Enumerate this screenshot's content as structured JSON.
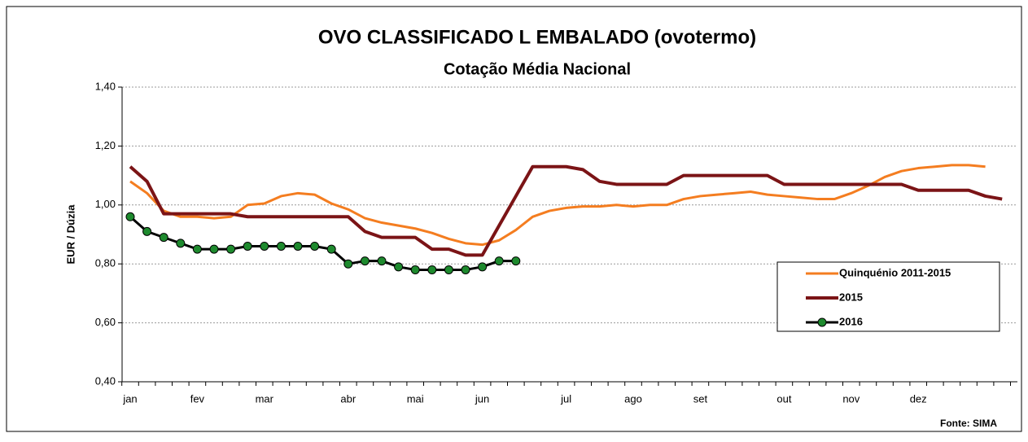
{
  "chart_data": {
    "type": "line",
    "title": "OVO CLASSIFICADO L EMBALADO (ovotermo)",
    "subtitle": "Cotação Média Nacional",
    "y_label": "EUR / Dúzia",
    "source": "Fonte: SIMA",
    "categories": [
      "jan",
      null,
      null,
      null,
      "fev",
      null,
      null,
      null,
      "mar",
      null,
      null,
      null,
      null,
      "abr",
      null,
      null,
      null,
      "mai",
      null,
      null,
      null,
      "jun",
      null,
      null,
      null,
      null,
      "jul",
      null,
      null,
      null,
      "ago",
      null,
      null,
      null,
      "set",
      null,
      null,
      null,
      null,
      "out",
      null,
      null,
      null,
      "nov",
      null,
      null,
      null,
      "dez",
      null,
      null,
      null,
      null,
      null
    ],
    "ylim": [
      0.4,
      1.4
    ],
    "yticks": [
      {
        "value": 0.4,
        "label": "0,40"
      },
      {
        "value": 0.6,
        "label": "0,60"
      },
      {
        "value": 0.8,
        "label": "0,80"
      },
      {
        "value": 1.0,
        "label": "1,00"
      },
      {
        "value": 1.2,
        "label": "1,20"
      },
      {
        "value": 1.4,
        "label": "1,40"
      }
    ],
    "grid": true,
    "legend": "right",
    "series": [
      {
        "name": "Quinquénio 2011-2015",
        "color": "#f47d20",
        "width": 3,
        "markers": false,
        "values": [
          1.08,
          1.04,
          0.98,
          0.96,
          0.96,
          0.955,
          0.96,
          1.0,
          1.005,
          1.03,
          1.04,
          1.035,
          1.005,
          0.985,
          0.955,
          0.94,
          0.93,
          0.92,
          0.905,
          0.885,
          0.87,
          0.865,
          0.88,
          0.915,
          0.96,
          0.98,
          0.99,
          0.995,
          0.995,
          1.0,
          0.995,
          1.0,
          1.0,
          1.02,
          1.03,
          1.035,
          1.04,
          1.045,
          1.035,
          1.03,
          1.025,
          1.02,
          1.02,
          1.04,
          1.065,
          1.095,
          1.115,
          1.125,
          1.13,
          1.135,
          1.135,
          1.13,
          null
        ]
      },
      {
        "name": "2015",
        "color": "#7b1416",
        "width": 4,
        "markers": false,
        "values": [
          1.13,
          1.08,
          0.97,
          0.97,
          0.97,
          0.97,
          0.97,
          0.96,
          0.96,
          0.96,
          0.96,
          0.96,
          0.96,
          0.96,
          0.91,
          0.89,
          0.89,
          0.89,
          0.85,
          0.85,
          0.83,
          0.83,
          0.93,
          1.03,
          1.13,
          1.13,
          1.13,
          1.12,
          1.08,
          1.07,
          1.07,
          1.07,
          1.07,
          1.1,
          1.1,
          1.1,
          1.1,
          1.1,
          1.1,
          1.07,
          1.07,
          1.07,
          1.07,
          1.07,
          1.07,
          1.07,
          1.07,
          1.05,
          1.05,
          1.05,
          1.05,
          1.03,
          1.02
        ]
      },
      {
        "name": "2016",
        "color": "#000000",
        "marker_color": "#1e8a2e",
        "width": 3,
        "markers": true,
        "values": [
          0.96,
          0.91,
          0.89,
          0.87,
          0.85,
          0.85,
          0.85,
          0.86,
          0.86,
          0.86,
          0.86,
          0.86,
          0.85,
          0.8,
          0.81,
          0.81,
          0.79,
          0.78,
          0.78,
          0.78,
          0.78,
          0.79,
          0.81,
          0.81,
          null,
          null,
          null,
          null,
          null,
          null,
          null,
          null,
          null,
          null,
          null,
          null,
          null,
          null,
          null,
          null,
          null,
          null,
          null,
          null,
          null,
          null,
          null,
          null,
          null,
          null,
          null,
          null,
          null
        ]
      }
    ]
  }
}
